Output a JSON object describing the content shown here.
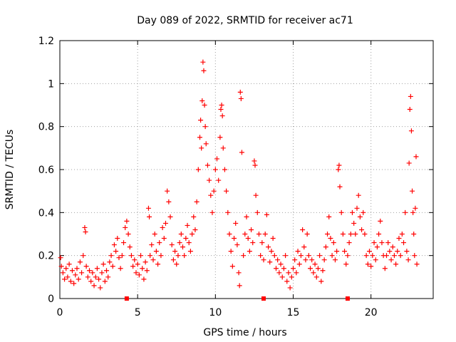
{
  "chart_data": {
    "type": "scatter",
    "title": "Day 089 of 2022, SRMTID for receiver ac71",
    "xlabel": "GPS time / hours",
    "ylabel": "SRMTID / TECUs",
    "xlim": [
      0,
      24
    ],
    "ylim": [
      0,
      1.2
    ],
    "xticks": [
      0,
      5,
      10,
      15,
      20
    ],
    "xtick_labels": [
      "0",
      "5",
      "10",
      "15",
      "20"
    ],
    "yticks": [
      0,
      0.2,
      0.4,
      0.6,
      0.8,
      1.0,
      1.2
    ],
    "ytick_labels": [
      "0",
      "0.2",
      "0.4",
      "0.6",
      "0.8",
      "1",
      "1.2"
    ],
    "grid": true,
    "marker": "plus",
    "color": "#ff0000",
    "series": [
      {
        "name": "SRMTID",
        "points": [
          [
            0.05,
            0.19
          ],
          [
            0.1,
            0.15
          ],
          [
            0.2,
            0.12
          ],
          [
            0.3,
            0.09
          ],
          [
            0.4,
            0.14
          ],
          [
            0.5,
            0.1
          ],
          [
            0.6,
            0.16
          ],
          [
            0.7,
            0.08
          ],
          [
            0.8,
            0.13
          ],
          [
            0.9,
            0.07
          ],
          [
            1.0,
            0.11
          ],
          [
            1.1,
            0.14
          ],
          [
            1.2,
            0.09
          ],
          [
            1.3,
            0.17
          ],
          [
            1.4,
            0.12
          ],
          [
            1.5,
            0.2
          ],
          [
            1.6,
            0.33
          ],
          [
            1.65,
            0.31
          ],
          [
            1.7,
            0.15
          ],
          [
            1.8,
            0.1
          ],
          [
            1.9,
            0.13
          ],
          [
            2.0,
            0.08
          ],
          [
            2.1,
            0.12
          ],
          [
            2.2,
            0.06
          ],
          [
            2.3,
            0.1
          ],
          [
            2.4,
            0.14
          ],
          [
            2.5,
            0.09
          ],
          [
            2.6,
            0.05
          ],
          [
            2.7,
            0.12
          ],
          [
            2.8,
            0.16
          ],
          [
            2.9,
            0.08
          ],
          [
            3.0,
            0.13
          ],
          [
            3.1,
            0.1
          ],
          [
            3.2,
            0.17
          ],
          [
            3.3,
            0.2
          ],
          [
            3.4,
            0.15
          ],
          [
            3.5,
            0.25
          ],
          [
            3.6,
            0.22
          ],
          [
            3.7,
            0.28
          ],
          [
            3.8,
            0.19
          ],
          [
            3.9,
            0.14
          ],
          [
            4.0,
            0.2
          ],
          [
            4.1,
            0.26
          ],
          [
            4.2,
            0.33
          ],
          [
            4.3,
            0.36
          ],
          [
            4.4,
            0.3
          ],
          [
            4.5,
            0.24
          ],
          [
            4.6,
            0.2
          ],
          [
            4.7,
            0.15
          ],
          [
            4.8,
            0.18
          ],
          [
            4.9,
            0.12
          ],
          [
            5.0,
            0.16
          ],
          [
            5.1,
            0.11
          ],
          [
            5.2,
            0.2
          ],
          [
            5.3,
            0.14
          ],
          [
            5.4,
            0.09
          ],
          [
            5.5,
            0.17
          ],
          [
            5.6,
            0.13
          ],
          [
            5.7,
            0.42
          ],
          [
            5.75,
            0.38
          ],
          [
            5.8,
            0.2
          ],
          [
            5.9,
            0.25
          ],
          [
            6.0,
            0.18
          ],
          [
            6.1,
            0.3
          ],
          [
            6.2,
            0.22
          ],
          [
            6.3,
            0.16
          ],
          [
            6.4,
            0.26
          ],
          [
            6.5,
            0.2
          ],
          [
            6.6,
            0.33
          ],
          [
            6.7,
            0.28
          ],
          [
            6.8,
            0.35
          ],
          [
            6.9,
            0.5
          ],
          [
            7.0,
            0.45
          ],
          [
            7.1,
            0.38
          ],
          [
            7.2,
            0.25
          ],
          [
            7.3,
            0.18
          ],
          [
            7.4,
            0.22
          ],
          [
            7.5,
            0.16
          ],
          [
            7.6,
            0.2
          ],
          [
            7.7,
            0.26
          ],
          [
            7.8,
            0.3
          ],
          [
            7.9,
            0.24
          ],
          [
            8.0,
            0.2
          ],
          [
            8.1,
            0.28
          ],
          [
            8.2,
            0.34
          ],
          [
            8.3,
            0.26
          ],
          [
            8.4,
            0.22
          ],
          [
            8.5,
            0.3
          ],
          [
            8.6,
            0.38
          ],
          [
            8.7,
            0.32
          ],
          [
            8.8,
            0.45
          ],
          [
            8.9,
            0.6
          ],
          [
            9.0,
            0.75
          ],
          [
            9.05,
            0.83
          ],
          [
            9.1,
            0.7
          ],
          [
            9.15,
            0.92
          ],
          [
            9.2,
            1.1
          ],
          [
            9.25,
            1.06
          ],
          [
            9.3,
            0.9
          ],
          [
            9.35,
            0.8
          ],
          [
            9.4,
            0.72
          ],
          [
            9.5,
            0.62
          ],
          [
            9.6,
            0.55
          ],
          [
            9.7,
            0.48
          ],
          [
            9.8,
            0.4
          ],
          [
            9.9,
            0.5
          ],
          [
            10.0,
            0.6
          ],
          [
            10.1,
            0.65
          ],
          [
            10.2,
            0.55
          ],
          [
            10.3,
            0.75
          ],
          [
            10.35,
            0.88
          ],
          [
            10.4,
            0.9
          ],
          [
            10.45,
            0.85
          ],
          [
            10.5,
            0.7
          ],
          [
            10.6,
            0.6
          ],
          [
            10.7,
            0.5
          ],
          [
            10.8,
            0.4
          ],
          [
            10.9,
            0.3
          ],
          [
            11.0,
            0.22
          ],
          [
            11.1,
            0.15
          ],
          [
            11.2,
            0.28
          ],
          [
            11.3,
            0.35
          ],
          [
            11.4,
            0.25
          ],
          [
            11.5,
            0.12
          ],
          [
            11.55,
            0.06
          ],
          [
            11.6,
            0.96
          ],
          [
            11.65,
            0.93
          ],
          [
            11.7,
            0.68
          ],
          [
            11.8,
            0.2
          ],
          [
            11.9,
            0.3
          ],
          [
            12.0,
            0.38
          ],
          [
            12.1,
            0.28
          ],
          [
            12.2,
            0.22
          ],
          [
            12.3,
            0.32
          ],
          [
            12.4,
            0.26
          ],
          [
            12.5,
            0.64
          ],
          [
            12.55,
            0.62
          ],
          [
            12.6,
            0.48
          ],
          [
            12.7,
            0.4
          ],
          [
            12.8,
            0.3
          ],
          [
            12.9,
            0.2
          ],
          [
            13.0,
            0.26
          ],
          [
            13.1,
            0.18
          ],
          [
            13.2,
            0.3
          ],
          [
            13.3,
            0.39
          ],
          [
            13.4,
            0.24
          ],
          [
            13.5,
            0.17
          ],
          [
            13.6,
            0.22
          ],
          [
            13.7,
            0.28
          ],
          [
            13.8,
            0.2
          ],
          [
            13.9,
            0.14
          ],
          [
            14.0,
            0.18
          ],
          [
            14.1,
            0.12
          ],
          [
            14.2,
            0.16
          ],
          [
            14.3,
            0.1
          ],
          [
            14.4,
            0.14
          ],
          [
            14.5,
            0.2
          ],
          [
            14.6,
            0.08
          ],
          [
            14.7,
            0.12
          ],
          [
            14.8,
            0.05
          ],
          [
            14.9,
            0.1
          ],
          [
            15.0,
            0.14
          ],
          [
            15.1,
            0.18
          ],
          [
            15.2,
            0.12
          ],
          [
            15.3,
            0.22
          ],
          [
            15.4,
            0.16
          ],
          [
            15.5,
            0.2
          ],
          [
            15.6,
            0.32
          ],
          [
            15.7,
            0.24
          ],
          [
            15.8,
            0.18
          ],
          [
            15.9,
            0.3
          ],
          [
            16.0,
            0.2
          ],
          [
            16.1,
            0.14
          ],
          [
            16.2,
            0.18
          ],
          [
            16.3,
            0.12
          ],
          [
            16.4,
            0.16
          ],
          [
            16.5,
            0.1
          ],
          [
            16.6,
            0.14
          ],
          [
            16.7,
            0.2
          ],
          [
            16.8,
            0.08
          ],
          [
            16.9,
            0.13
          ],
          [
            17.0,
            0.18
          ],
          [
            17.1,
            0.24
          ],
          [
            17.2,
            0.3
          ],
          [
            17.3,
            0.38
          ],
          [
            17.4,
            0.28
          ],
          [
            17.5,
            0.2
          ],
          [
            17.6,
            0.26
          ],
          [
            17.7,
            0.18
          ],
          [
            17.8,
            0.22
          ],
          [
            17.9,
            0.6
          ],
          [
            17.95,
            0.62
          ],
          [
            18.0,
            0.52
          ],
          [
            18.1,
            0.4
          ],
          [
            18.2,
            0.3
          ],
          [
            18.3,
            0.22
          ],
          [
            18.4,
            0.16
          ],
          [
            18.5,
            0.2
          ],
          [
            18.6,
            0.26
          ],
          [
            18.7,
            0.3
          ],
          [
            18.8,
            0.4
          ],
          [
            18.9,
            0.35
          ],
          [
            19.0,
            0.3
          ],
          [
            19.1,
            0.42
          ],
          [
            19.2,
            0.48
          ],
          [
            19.3,
            0.38
          ],
          [
            19.4,
            0.32
          ],
          [
            19.5,
            0.4
          ],
          [
            19.6,
            0.3
          ],
          [
            19.7,
            0.2
          ],
          [
            19.8,
            0.16
          ],
          [
            19.9,
            0.22
          ],
          [
            20.0,
            0.15
          ],
          [
            20.1,
            0.2
          ],
          [
            20.2,
            0.26
          ],
          [
            20.3,
            0.18
          ],
          [
            20.4,
            0.24
          ],
          [
            20.5,
            0.3
          ],
          [
            20.6,
            0.36
          ],
          [
            20.7,
            0.26
          ],
          [
            20.8,
            0.2
          ],
          [
            20.9,
            0.14
          ],
          [
            21.0,
            0.2
          ],
          [
            21.1,
            0.26
          ],
          [
            21.2,
            0.22
          ],
          [
            21.3,
            0.18
          ],
          [
            21.4,
            0.24
          ],
          [
            21.5,
            0.2
          ],
          [
            21.6,
            0.16
          ],
          [
            21.7,
            0.22
          ],
          [
            21.8,
            0.28
          ],
          [
            21.9,
            0.2
          ],
          [
            22.0,
            0.3
          ],
          [
            22.1,
            0.26
          ],
          [
            22.2,
            0.4
          ],
          [
            22.3,
            0.22
          ],
          [
            22.4,
            0.18
          ],
          [
            22.45,
            0.63
          ],
          [
            22.5,
            0.88
          ],
          [
            22.55,
            0.94
          ],
          [
            22.6,
            0.78
          ],
          [
            22.65,
            0.5
          ],
          [
            22.7,
            0.4
          ],
          [
            22.75,
            0.3
          ],
          [
            22.8,
            0.2
          ],
          [
            22.85,
            0.42
          ],
          [
            22.9,
            0.66
          ],
          [
            22.95,
            0.16
          ]
        ]
      }
    ],
    "zero_markers": [
      4.3,
      13.1,
      18.5
    ]
  }
}
